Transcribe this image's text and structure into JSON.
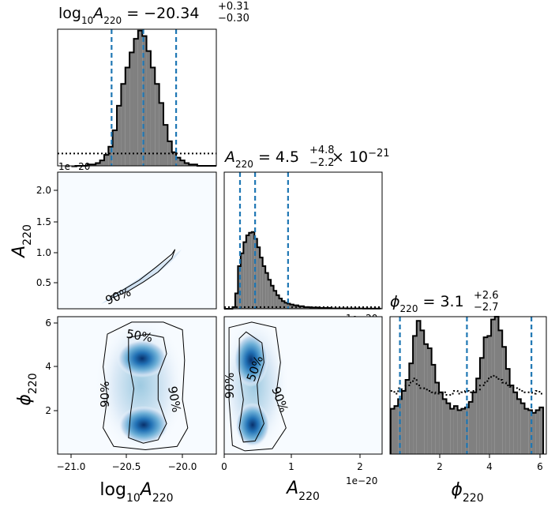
{
  "chart_data": [
    {
      "type": "histogram",
      "panel": "diag-logA",
      "title": {
        "main": "log",
        "sub1": "10",
        "var": "A",
        "sub2": "220",
        "value": " = −20.34",
        "plus": "+0.31",
        "minus": "−0.30"
      },
      "offset_text": "1e−20",
      "x": [
        -20.97,
        -20.93,
        -20.89,
        -20.85,
        -20.81,
        -20.77,
        -20.73,
        -20.69,
        -20.65,
        -20.61,
        -20.57,
        -20.53,
        -20.49,
        -20.45,
        -20.41,
        -20.37,
        -20.33,
        -20.29,
        -20.25,
        -20.21,
        -20.17,
        -20.13,
        -20.09,
        -20.05,
        -20.01,
        -19.97,
        -19.93,
        -19.89,
        -19.85,
        -19.81,
        -19.77,
        -19.73,
        -19.69,
        -19.65
      ],
      "posterior": [
        0.0,
        0.0,
        0.0,
        0.01,
        0.01,
        0.02,
        0.04,
        0.08,
        0.14,
        0.26,
        0.44,
        0.6,
        0.72,
        0.83,
        0.93,
        0.99,
        0.95,
        0.84,
        0.72,
        0.6,
        0.46,
        0.3,
        0.18,
        0.1,
        0.06,
        0.04,
        0.02,
        0.01,
        0.01,
        0.0,
        0.0,
        0.0,
        0.0,
        0.0
      ],
      "prior_level": 0.09,
      "quantiles": [
        -20.64,
        -20.34,
        -20.03
      ],
      "xlim": [
        -21.15,
        -19.65
      ]
    },
    {
      "type": "histogram",
      "panel": "diag-A",
      "title": {
        "var": "A",
        "sub": "220",
        "value": " = 4.5",
        "plus": "+4.8",
        "minus": "−2.2",
        "times": " × 10",
        "exp": "−21"
      },
      "offset_text": "1e−20",
      "x": [
        0.02,
        0.06,
        0.1,
        0.14,
        0.18,
        0.22,
        0.26,
        0.3,
        0.34,
        0.38,
        0.42,
        0.46,
        0.5,
        0.54,
        0.58,
        0.62,
        0.66,
        0.7,
        0.74,
        0.78,
        0.82,
        0.86,
        0.9,
        0.94,
        0.98,
        1.04,
        1.12,
        1.2,
        1.3,
        1.45,
        1.65,
        1.9,
        2.15
      ],
      "posterior": [
        0.0,
        0.0,
        0.0,
        0.02,
        0.18,
        0.5,
        0.65,
        0.78,
        0.86,
        0.89,
        0.9,
        0.82,
        0.72,
        0.6,
        0.5,
        0.42,
        0.34,
        0.27,
        0.21,
        0.16,
        0.12,
        0.09,
        0.07,
        0.06,
        0.05,
        0.04,
        0.03,
        0.02,
        0.015,
        0.01,
        0.005,
        0.003,
        0.002
      ],
      "prior_level": 0.02,
      "quantiles": [
        0.23,
        0.45,
        0.93
      ],
      "xlim": [
        0.0,
        2.3
      ]
    },
    {
      "type": "histogram",
      "panel": "diag-phi",
      "title": {
        "var": "ϕ",
        "sub": "220",
        "value": " = 3.1",
        "plus": "+2.6",
        "minus": "−2.7"
      },
      "x": [
        0.1,
        0.25,
        0.4,
        0.55,
        0.7,
        0.85,
        1.0,
        1.15,
        1.3,
        1.45,
        1.6,
        1.75,
        1.9,
        2.05,
        2.2,
        2.35,
        2.5,
        2.65,
        2.8,
        2.95,
        3.1,
        3.25,
        3.4,
        3.55,
        3.7,
        3.85,
        4.0,
        4.15,
        4.3,
        4.45,
        4.6,
        4.75,
        4.9,
        5.05,
        5.2,
        5.35,
        5.5,
        5.65,
        5.8,
        5.95,
        6.1
      ],
      "posterior": [
        0.33,
        0.35,
        0.4,
        0.46,
        0.54,
        0.66,
        0.86,
        0.97,
        0.9,
        0.8,
        0.77,
        0.65,
        0.52,
        0.45,
        0.4,
        0.37,
        0.33,
        0.35,
        0.32,
        0.33,
        0.34,
        0.38,
        0.45,
        0.55,
        0.7,
        0.85,
        0.86,
        0.98,
        1.0,
        0.9,
        0.78,
        0.62,
        0.5,
        0.45,
        0.4,
        0.37,
        0.33,
        0.32,
        0.3,
        0.32,
        0.34
      ],
      "prior": [
        0.46,
        0.44,
        0.48,
        0.47,
        0.5,
        0.52,
        0.55,
        0.5,
        0.48,
        0.47,
        0.46,
        0.45,
        0.44,
        0.44,
        0.45,
        0.43,
        0.44,
        0.46,
        0.44,
        0.45,
        0.46,
        0.45,
        0.46,
        0.47,
        0.5,
        0.52,
        0.55,
        0.57,
        0.56,
        0.54,
        0.52,
        0.5,
        0.49,
        0.48,
        0.47,
        0.46,
        0.45,
        0.45,
        0.44,
        0.46,
        0.44
      ],
      "quantiles": [
        0.4,
        3.1,
        5.7
      ],
      "xlim": [
        0.0,
        6.3
      ]
    },
    {
      "type": "density",
      "panel": "A-vs-logA",
      "x_range": [
        -21.15,
        -19.65
      ],
      "y_range": [
        0.0,
        2.3
      ],
      "contour_90": [
        [
          -20.62,
          0.19
        ],
        [
          -20.48,
          0.3
        ],
        [
          -20.34,
          0.45
        ],
        [
          -20.2,
          0.62
        ],
        [
          -20.07,
          0.85
        ],
        [
          -20.04,
          1.0
        ],
        [
          -20.07,
          0.92
        ],
        [
          -20.22,
          0.7
        ],
        [
          -20.38,
          0.48
        ],
        [
          -20.52,
          0.33
        ],
        [
          -20.65,
          0.21
        ],
        [
          -20.62,
          0.19
        ]
      ],
      "contour_labels": [
        "90%"
      ]
    },
    {
      "type": "density",
      "panel": "phi-vs-logA",
      "x_range": [
        -21.15,
        -19.65
      ],
      "y_range": [
        0.0,
        6.3
      ],
      "modes": [
        [
          -20.3,
          4.2
        ],
        [
          -20.3,
          1.2
        ]
      ],
      "contour_50": [
        [
          -20.48,
          5.35
        ],
        [
          -20.3,
          5.5
        ],
        [
          -20.15,
          5.35
        ],
        [
          -20.12,
          4.6
        ],
        [
          -20.2,
          3.6
        ],
        [
          -20.2,
          2.5
        ],
        [
          -20.12,
          1.4
        ],
        [
          -20.2,
          0.65
        ],
        [
          -20.34,
          0.5
        ],
        [
          -20.48,
          0.75
        ],
        [
          -20.46,
          1.9
        ],
        [
          -20.43,
          3.0
        ],
        [
          -20.48,
          4.3
        ],
        [
          -20.48,
          5.35
        ]
      ],
      "contour_90": [
        [
          -20.68,
          5.5
        ],
        [
          -20.45,
          6.05
        ],
        [
          -20.15,
          6.05
        ],
        [
          -19.97,
          5.7
        ],
        [
          -19.95,
          4.3
        ],
        [
          -19.97,
          2.5
        ],
        [
          -19.92,
          1.2
        ],
        [
          -20.02,
          0.35
        ],
        [
          -20.32,
          0.2
        ],
        [
          -20.62,
          0.35
        ],
        [
          -20.72,
          1.2
        ],
        [
          -20.68,
          2.6
        ],
        [
          -20.72,
          4.0
        ],
        [
          -20.68,
          5.5
        ]
      ],
      "contour_labels": [
        "50%",
        "90%",
        "90%"
      ]
    },
    {
      "type": "density",
      "panel": "phi-vs-A",
      "x_range": [
        0.0,
        2.3
      ],
      "y_range": [
        0.0,
        6.3
      ],
      "modes": [
        [
          0.38,
          4.2
        ],
        [
          0.38,
          1.2
        ]
      ],
      "contour_50": [
        [
          0.22,
          5.3
        ],
        [
          0.32,
          5.6
        ],
        [
          0.55,
          5.1
        ],
        [
          0.58,
          4.2
        ],
        [
          0.48,
          3.2
        ],
        [
          0.5,
          2.3
        ],
        [
          0.58,
          1.4
        ],
        [
          0.45,
          0.6
        ],
        [
          0.28,
          0.55
        ],
        [
          0.22,
          1.2
        ],
        [
          0.28,
          2.5
        ],
        [
          0.22,
          3.8
        ],
        [
          0.22,
          5.3
        ]
      ],
      "contour_90": [
        [
          0.07,
          5.8
        ],
        [
          0.4,
          6.05
        ],
        [
          0.75,
          5.8
        ],
        [
          0.82,
          4.2
        ],
        [
          0.75,
          2.6
        ],
        [
          0.9,
          1.2
        ],
        [
          0.7,
          0.25
        ],
        [
          0.3,
          0.15
        ],
        [
          0.12,
          0.4
        ],
        [
          0.07,
          2.5
        ],
        [
          0.07,
          4.5
        ],
        [
          0.07,
          5.8
        ]
      ],
      "contour_labels": [
        "50%",
        "90%",
        "90%"
      ]
    }
  ],
  "axes": {
    "A_label": {
      "var": "A",
      "sub": "220"
    },
    "phi_label": {
      "var": "ϕ",
      "sub": "220"
    },
    "logA_label": {
      "main": "log",
      "sub1": "10",
      "var": "A",
      "sub2": "220"
    },
    "A_offset": "1e−20",
    "logA_ticks": [
      "−21.0",
      "−20.5",
      "−20.0"
    ],
    "A_y_ticks": [
      "0.5",
      "1.0",
      "1.5",
      "2.0"
    ],
    "A_x_ticks": [
      "0",
      "1",
      "2"
    ],
    "phi_ticks": [
      "2",
      "4",
      "6"
    ]
  },
  "colors": {
    "hist_fill": "#808080",
    "quantile_line": "#1f77b4",
    "density_low": "#f7fbff",
    "density_high": "#08306b"
  }
}
